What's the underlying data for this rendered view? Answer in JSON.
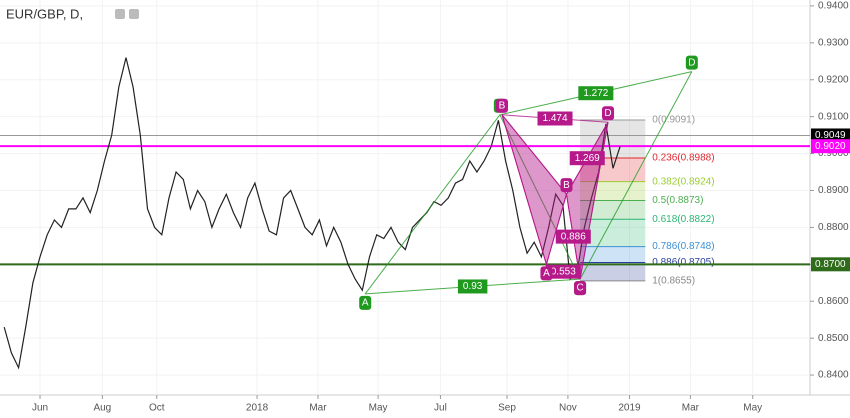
{
  "chart_data": {
    "type": "line",
    "title": "EUR/GBP, D,",
    "color": "#222222",
    "x": [
      -5,
      -4,
      -3,
      -2,
      -1,
      0,
      1,
      2,
      3,
      4,
      5,
      6,
      7,
      8,
      9,
      10,
      11,
      12,
      13,
      14,
      15,
      16,
      17,
      18,
      19,
      20,
      21,
      22,
      23,
      24,
      25,
      26,
      27,
      28,
      29,
      30,
      31,
      32,
      33,
      34,
      35,
      36,
      37,
      38,
      39,
      40,
      41,
      42,
      43,
      44,
      45,
      46,
      47,
      48,
      49,
      50,
      51,
      52,
      53,
      54,
      55,
      56,
      57,
      58,
      59,
      60,
      61,
      62,
      63,
      64,
      65,
      66,
      67,
      68,
      69,
      70,
      71,
      72,
      73,
      74,
      75,
      76,
      77,
      78,
      79,
      80,
      81
    ],
    "values": [
      0.853,
      0.846,
      0.842,
      0.853,
      0.865,
      0.872,
      0.878,
      0.882,
      0.88,
      0.885,
      0.885,
      0.888,
      0.884,
      0.89,
      0.898,
      0.905,
      0.918,
      0.926,
      0.918,
      0.905,
      0.885,
      0.88,
      0.878,
      0.888,
      0.895,
      0.893,
      0.885,
      0.89,
      0.887,
      0.88,
      0.885,
      0.889,
      0.884,
      0.88,
      0.888,
      0.892,
      0.885,
      0.879,
      0.878,
      0.888,
      0.89,
      0.885,
      0.88,
      0.878,
      0.882,
      0.875,
      0.88,
      0.876,
      0.87,
      0.866,
      0.863,
      0.872,
      0.878,
      0.877,
      0.88,
      0.876,
      0.874,
      0.88,
      0.882,
      0.884,
      0.887,
      0.886,
      0.888,
      0.892,
      0.893,
      0.898,
      0.895,
      0.898,
      0.902,
      0.909,
      0.898,
      0.89,
      0.88,
      0.873,
      0.876,
      0.872,
      0.88,
      0.889,
      0.886,
      0.866,
      0.868,
      0.88,
      0.888,
      0.895,
      0.908,
      0.896,
      0.902
    ],
    "xlim": [
      -5.59,
      107.5
    ],
    "xticks": [
      {
        "value": 0,
        "label": "Jun"
      },
      {
        "value": 8.7,
        "label": "Aug"
      },
      {
        "value": 16.3,
        "label": "Oct"
      },
      {
        "value": 30.3,
        "label": "2018"
      },
      {
        "value": 38.8,
        "label": "Mar"
      },
      {
        "value": 47.2,
        "label": "May"
      },
      {
        "value": 55.9,
        "label": "Jul"
      },
      {
        "value": 65.2,
        "label": "Sep"
      },
      {
        "value": 73.7,
        "label": "Nov"
      },
      {
        "value": 82.3,
        "label": "2019"
      },
      {
        "value": 90.8,
        "label": "Mar"
      },
      {
        "value": 99.5,
        "label": "May"
      }
    ],
    "ylim": [
      0.8346,
      0.9416
    ],
    "yticks": [
      {
        "value": 0.84,
        "label": "0.8400"
      },
      {
        "value": 0.85,
        "label": "0.8500"
      },
      {
        "value": 0.86,
        "label": "0.8600"
      },
      {
        "value": 0.87,
        "label": "0.8700"
      },
      {
        "value": 0.88,
        "label": "0.8800"
      },
      {
        "value": 0.89,
        "label": "0.8900"
      },
      {
        "value": 0.9,
        "label": "0.9000"
      },
      {
        "value": 0.91,
        "label": "0.9100"
      },
      {
        "value": 0.92,
        "label": "0.9200"
      },
      {
        "value": 0.93,
        "label": "0.9300"
      },
      {
        "value": 0.94,
        "label": "0.9400"
      }
    ],
    "grid": true,
    "hlines": [
      {
        "value": 0.9049,
        "label": "0.9049",
        "color": "#999999",
        "label_color": "#000000",
        "width": 1
      },
      {
        "value": 0.902,
        "label": "0.9020",
        "color": "#ff00ff",
        "label_color": "#ff00ff",
        "width": 2
      },
      {
        "value": 0.87,
        "label": "0.8700",
        "color": "#2e6b1a",
        "label_color": "#2e6b1a",
        "width": 2
      }
    ],
    "fib": {
      "x": [
        75.4,
        84.5
      ],
      "levels": [
        {
          "label": "0(0.9091)",
          "value": 0.9091,
          "color": "#999999"
        },
        {
          "label": "0.236(0.8988)",
          "value": 0.8988,
          "color": "#e0282e"
        },
        {
          "label": "0.382(0.8924)",
          "value": 0.8924,
          "color": "#9acd32"
        },
        {
          "label": "0.5(0.8873)",
          "value": 0.8873,
          "color": "#4caf50"
        },
        {
          "label": "0.618(0.8822)",
          "value": 0.8822,
          "color": "#2bb673"
        },
        {
          "label": "0.786(0.8748)",
          "value": 0.8748,
          "color": "#3d8fd6"
        },
        {
          "label": "0.886(0.8705)",
          "value": 0.8705,
          "color": "#2a3f9c"
        },
        {
          "label": "1(0.8655)",
          "value": 0.8655,
          "color": "#888888"
        }
      ]
    },
    "patterns": [
      {
        "color": "#1f9a1f",
        "points": [
          {
            "label": "A",
            "x": 45.4,
            "y": 0.862
          },
          {
            "label": "B",
            "x": 64.2,
            "y": 0.9105
          },
          {
            "label": "C",
            "x": 75.4,
            "y": 0.866
          },
          {
            "label": "D",
            "x": 91,
            "y": 0.9222
          }
        ],
        "ratios": [
          {
            "label": "0.93"
          },
          {
            "label": "1.272"
          }
        ]
      },
      {
        "color": "#b5198a",
        "points": [
          {
            "label": "B",
            "x": 64.5,
            "y": 0.9105
          },
          {
            "label": "A",
            "x": 70.7,
            "y": 0.87
          },
          {
            "label": "B",
            "x": 73.5,
            "y": 0.889
          },
          {
            "label": "C",
            "x": 75.4,
            "y": 0.866
          },
          {
            "label": "D",
            "x": 79.3,
            "y": 0.9085
          }
        ],
        "ratios": [
          {
            "label": "0.553"
          },
          {
            "label": "1.269"
          },
          {
            "label": "1.474"
          },
          {
            "label": "0.886"
          }
        ]
      }
    ]
  }
}
